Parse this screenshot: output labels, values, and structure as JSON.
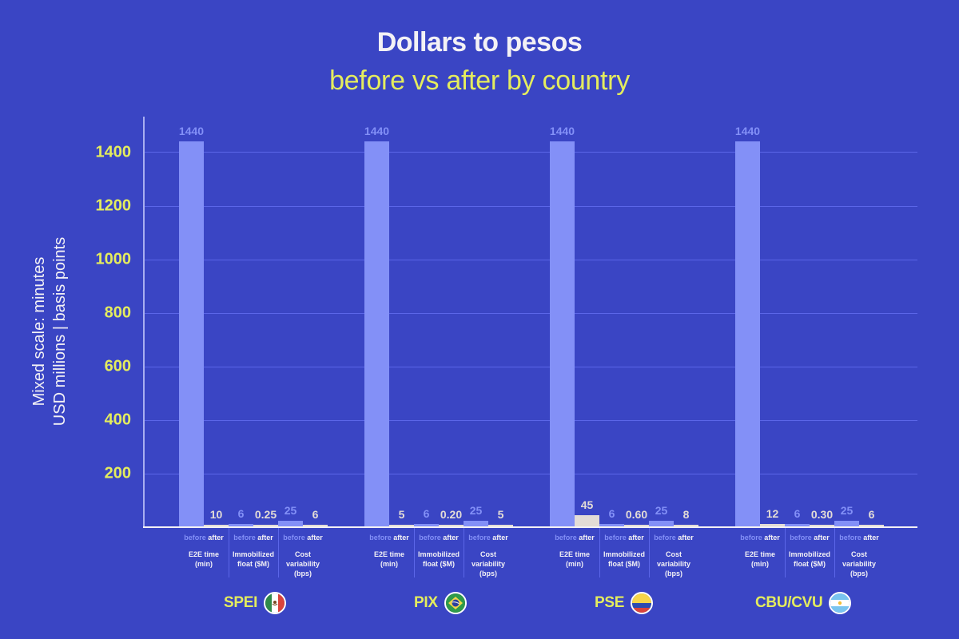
{
  "title": "Dollars to pesos",
  "subtitle": "before vs after by country",
  "y_axis": {
    "label_line1": "Mixed scale: minutes",
    "label_line2": "USD millions | basis points",
    "ticks": [
      "200",
      "400",
      "600",
      "800",
      "1000",
      "1200",
      "1400"
    ]
  },
  "legend_words": {
    "before": "before",
    "after": "after"
  },
  "metrics": [
    {
      "line1": "E2E time",
      "line2": "(min)",
      "line3": ""
    },
    {
      "line1": "Immobilized",
      "line2": "float ($M)",
      "line3": ""
    },
    {
      "line1": "Cost",
      "line2": "variability",
      "line3": "(bps)"
    }
  ],
  "countries": [
    {
      "name": "SPEI",
      "flag": "mexico-flag-icon"
    },
    {
      "name": "PIX",
      "flag": "brazil-flag-icon"
    },
    {
      "name": "PSE",
      "flag": "colombia-flag-icon"
    },
    {
      "name": "CBU/CVU",
      "flag": "argentina-flag-icon"
    }
  ],
  "colors": {
    "background": "#3a45c4",
    "before_bar": "#8390f7",
    "after_bar": "#e3dcd6",
    "accent_yellow": "#e4ec5e",
    "gridline": "#5b66e8"
  },
  "labels": {
    "SPEI": {
      "e2e_before": "1440",
      "e2e_after": "10",
      "float_before": "6",
      "float_after": "0.25",
      "cost_before": "25",
      "cost_after": "6"
    },
    "PIX": {
      "e2e_before": "1440",
      "e2e_after": "5",
      "float_before": "6",
      "float_after": "0.20",
      "cost_before": "25",
      "cost_after": "5"
    },
    "PSE": {
      "e2e_before": "1440",
      "e2e_after": "45",
      "float_before": "6",
      "float_after": "0.60",
      "cost_before": "25",
      "cost_after": "8"
    },
    "CBU/CVU": {
      "e2e_before": "1440",
      "e2e_after": "12",
      "float_before": "6",
      "float_after": "0.30",
      "cost_before": "25",
      "cost_after": "6"
    }
  },
  "chart_data": {
    "type": "bar",
    "title": "Dollars to pesos",
    "subtitle": "before vs after by country",
    "xlabel": "",
    "ylabel": "Mixed scale: minutes / USD millions | basis points",
    "ylim": [
      0,
      1530
    ],
    "yticks": [
      200,
      400,
      600,
      800,
      1000,
      1200,
      1400
    ],
    "grid": true,
    "groups": [
      "SPEI",
      "PIX",
      "PSE",
      "CBU/CVU"
    ],
    "categories": [
      "E2E time (min)",
      "Immobilized float ($M)",
      "Cost variability (bps)"
    ],
    "series": [
      {
        "name": "SPEI before",
        "values": [
          1440,
          6,
          25
        ]
      },
      {
        "name": "SPEI after",
        "values": [
          10,
          0.25,
          6
        ]
      },
      {
        "name": "PIX before",
        "values": [
          1440,
          6,
          25
        ]
      },
      {
        "name": "PIX after",
        "values": [
          5,
          0.2,
          5
        ]
      },
      {
        "name": "PSE before",
        "values": [
          1440,
          6,
          25
        ]
      },
      {
        "name": "PSE after",
        "values": [
          45,
          0.6,
          8
        ]
      },
      {
        "name": "CBU/CVU before",
        "values": [
          1440,
          6,
          25
        ]
      },
      {
        "name": "CBU/CVU after",
        "values": [
          12,
          0.3,
          6
        ]
      }
    ]
  }
}
